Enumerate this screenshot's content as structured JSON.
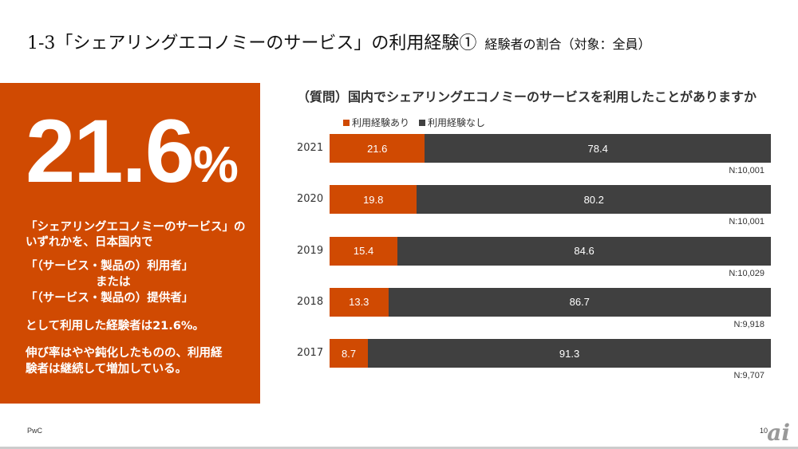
{
  "title": {
    "main": "1-3「シェアリングエコノミーのサービス」の利用経験①",
    "sub": "経験者の割合（対象：全員）"
  },
  "panel": {
    "big_number": "21.6",
    "big_unit": "%",
    "lines": [
      "「シェアリングエコノミーのサービス」の",
      "いずれかを、日本国内で",
      "「（サービス・製品の）利用者」",
      "または",
      "「（サービス・製品の）提供者」",
      "として利用した経験者は21.6%。",
      "伸び率はやや鈍化したものの、利用経",
      "験者は継続して増加している。"
    ]
  },
  "chart_data": {
    "type": "bar",
    "stacked": true,
    "orientation": "horizontal",
    "title": "（質問）国内でシェアリングエコノミーのサービスを利用したことがありますか",
    "categories": [
      "2021",
      "2020",
      "2019",
      "2018",
      "2017"
    ],
    "series": [
      {
        "name": "利用経験あり",
        "color": "#D04A02",
        "values": [
          21.6,
          19.8,
          15.4,
          13.3,
          8.7
        ]
      },
      {
        "name": "利用経験なし",
        "color": "#404040",
        "values": [
          78.4,
          80.2,
          84.6,
          86.7,
          91.3
        ]
      }
    ],
    "n_labels": [
      "N:10,001",
      "N:10,001",
      "N:10,029",
      "N:9,918",
      "N:9,707"
    ],
    "xlim": [
      0,
      100
    ],
    "legend": "top-left"
  },
  "footer": {
    "left": "PwC",
    "page": "10",
    "logo": "ai"
  }
}
